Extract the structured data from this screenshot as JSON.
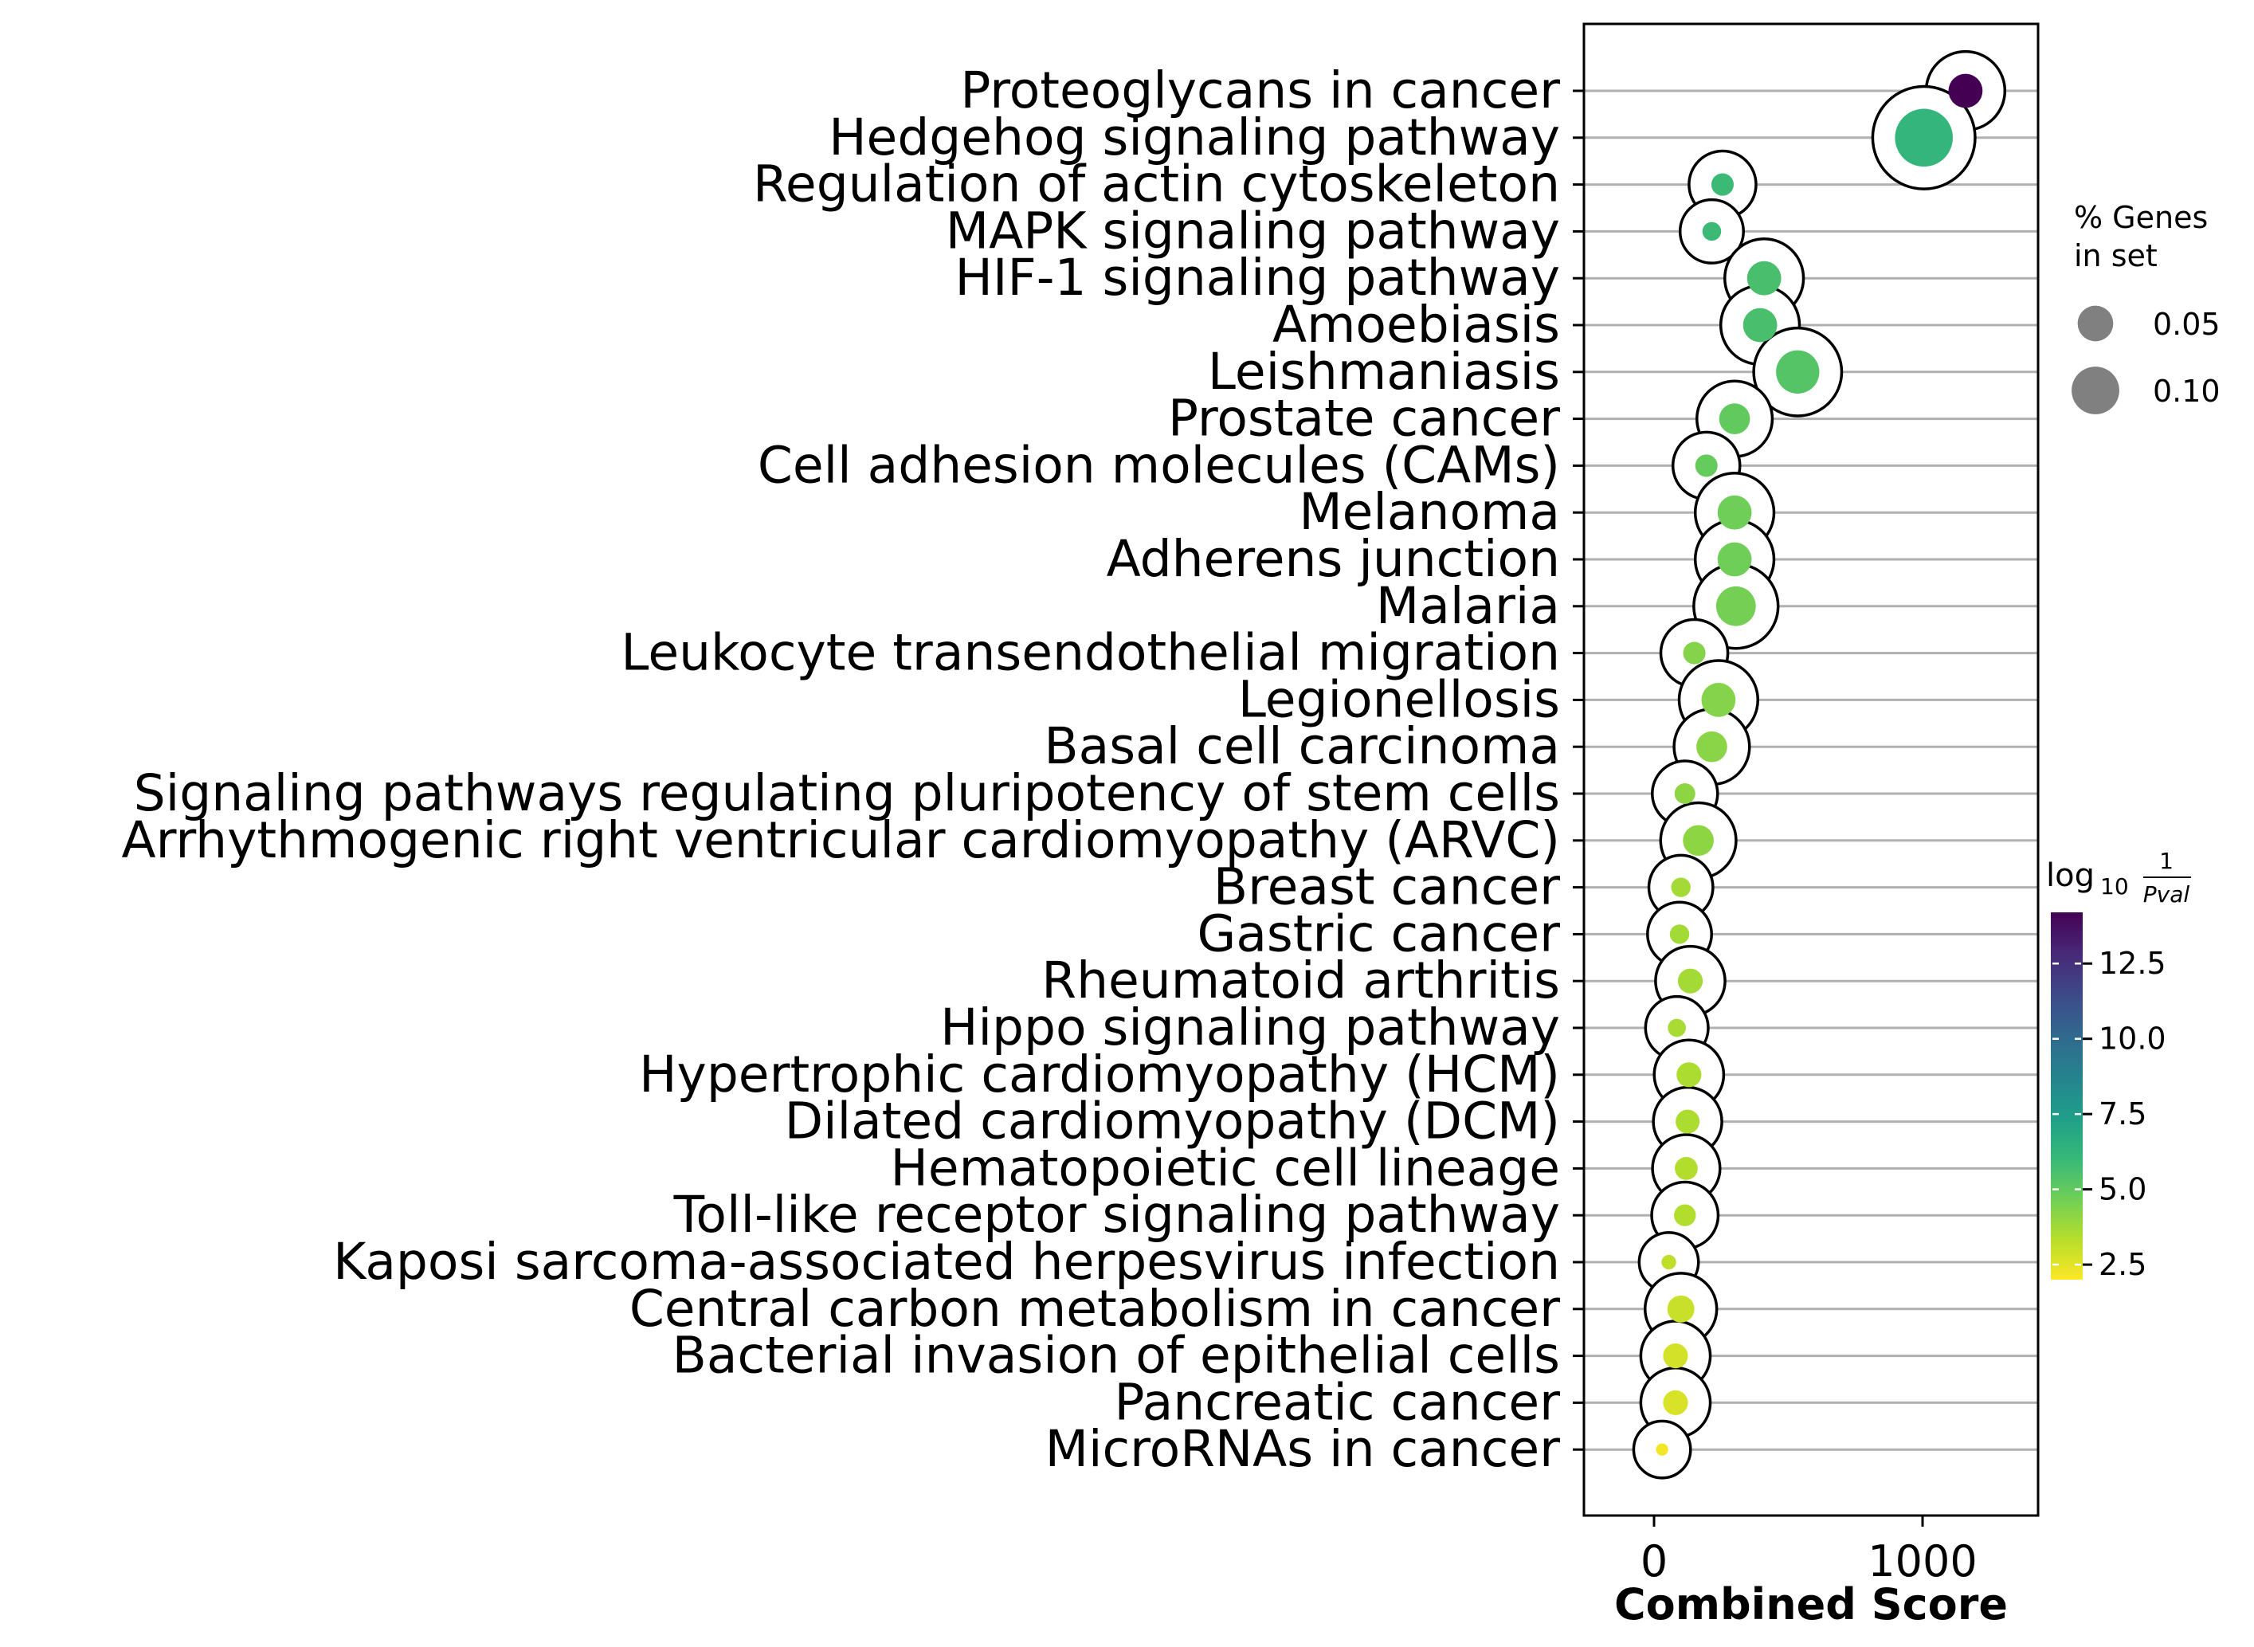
{
  "chart_data": {
    "type": "scatter",
    "xlabel": "Combined Score",
    "xticks": [
      0,
      1000
    ],
    "xlim": [
      -250,
      1450
    ],
    "size_legend": {
      "title_lines": [
        "% Genes",
        "in set"
      ],
      "entries": [
        {
          "label": "0.05",
          "value": 0.05
        },
        {
          "label": "0.10",
          "value": 0.1
        }
      ]
    },
    "colorbar": {
      "title_prefix": "log",
      "title_sub": "10",
      "title_num": "1",
      "title_den": "Pval",
      "ticks": [
        "2.5",
        "5.0",
        "7.5",
        "10.0",
        "12.5"
      ],
      "tick_values": [
        2.5,
        5.0,
        7.5,
        10.0,
        12.5
      ],
      "range": [
        2.0,
        14.2
      ],
      "colormap": [
        "#fde725",
        "#b5de2b",
        "#6ece58",
        "#35b779",
        "#1f9e89",
        "#26828e",
        "#31688e",
        "#3e4989",
        "#482878",
        "#440154"
      ]
    },
    "points": [
      {
        "term": "Proteoglycans in cancer",
        "score": 1160,
        "genes": 0.045,
        "logp": 14.2
      },
      {
        "term": "Hedgehog signaling pathway",
        "score": 1005,
        "genes": 0.155,
        "logp": 6.2
      },
      {
        "term": "Regulation of actin cytoskeleton",
        "score": 255,
        "genes": 0.015,
        "logp": 5.9
      },
      {
        "term": "MAPK signaling pathway",
        "score": 215,
        "genes": 0.009,
        "logp": 5.9
      },
      {
        "term": "HIF-1 signaling pathway",
        "score": 410,
        "genes": 0.045,
        "logp": 5.6
      },
      {
        "term": "Amoebiasis",
        "score": 395,
        "genes": 0.045,
        "logp": 5.6
      },
      {
        "term": "Leishmaniasis",
        "score": 535,
        "genes": 0.08,
        "logp": 5.3
      },
      {
        "term": "Prostate cancer",
        "score": 300,
        "genes": 0.035,
        "logp": 5.0
      },
      {
        "term": "Cell adhesion molecules (CAMs)",
        "score": 195,
        "genes": 0.015,
        "logp": 4.9
      },
      {
        "term": "Melanoma",
        "score": 300,
        "genes": 0.045,
        "logp": 4.7
      },
      {
        "term": "Adherens junction",
        "score": 300,
        "genes": 0.045,
        "logp": 4.7
      },
      {
        "term": "Malaria",
        "score": 305,
        "genes": 0.065,
        "logp": 4.6
      },
      {
        "term": "Leukocyte transendothelial migration",
        "score": 150,
        "genes": 0.015,
        "logp": 4.3
      },
      {
        "term": "Legionellosis",
        "score": 240,
        "genes": 0.045,
        "logp": 4.3
      },
      {
        "term": "Basal cell carcinoma",
        "score": 215,
        "genes": 0.035,
        "logp": 4.2
      },
      {
        "term": "Signaling pathways regulating pluripotency of stem cells",
        "score": 115,
        "genes": 0.012,
        "logp": 4.1
      },
      {
        "term": "Arrhythmogenic right ventricular cardiomyopathy (ARVC)",
        "score": 165,
        "genes": 0.035,
        "logp": 4.1
      },
      {
        "term": "Breast cancer",
        "score": 100,
        "genes": 0.01,
        "logp": 3.7
      },
      {
        "term": "Gastric cancer",
        "score": 95,
        "genes": 0.01,
        "logp": 3.7
      },
      {
        "term": "Rheumatoid arthritis",
        "score": 135,
        "genes": 0.02,
        "logp": 3.7
      },
      {
        "term": "Hippo signaling pathway",
        "score": 85,
        "genes": 0.008,
        "logp": 3.6
      },
      {
        "term": "Hypertrophic cardiomyopathy (HCM)",
        "score": 130,
        "genes": 0.02,
        "logp": 3.5
      },
      {
        "term": "Dilated cardiomyopathy (DCM)",
        "score": 125,
        "genes": 0.018,
        "logp": 3.5
      },
      {
        "term": "Hematopoietic cell lineage",
        "score": 120,
        "genes": 0.016,
        "logp": 3.4
      },
      {
        "term": "Toll-like receptor signaling pathway",
        "score": 115,
        "genes": 0.014,
        "logp": 3.4
      },
      {
        "term": "Kaposi sarcoma-associated herpesvirus infection",
        "score": 55,
        "genes": 0.004,
        "logp": 3.2
      },
      {
        "term": "Central carbon metabolism in cancer",
        "score": 100,
        "genes": 0.025,
        "logp": 3.0
      },
      {
        "term": "Bacterial invasion of epithelial cells",
        "score": 80,
        "genes": 0.02,
        "logp": 2.8
      },
      {
        "term": "Pancreatic cancer",
        "score": 80,
        "genes": 0.02,
        "logp": 2.7
      },
      {
        "term": "MicroRNAs in cancer",
        "score": 30,
        "genes": 0.002,
        "logp": 2.2
      }
    ]
  }
}
